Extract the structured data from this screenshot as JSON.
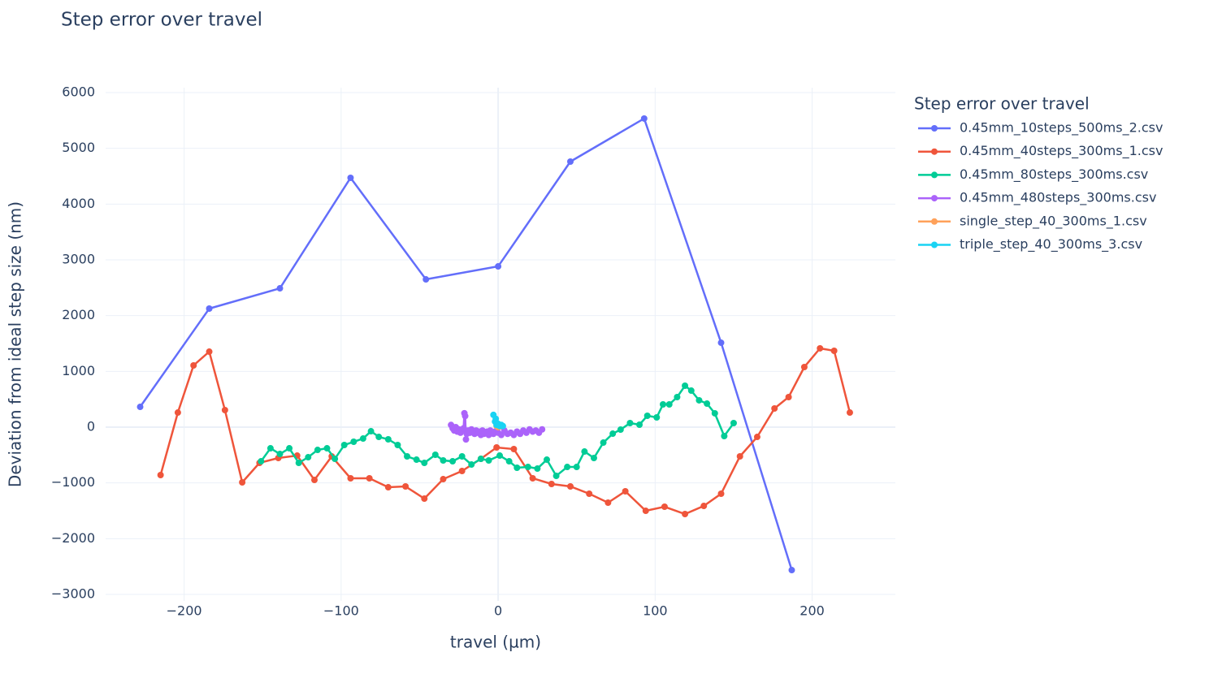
{
  "chart_data": {
    "type": "line",
    "title": "Step error over travel",
    "x_label": "travel (µm)",
    "y_label": "Deviation from ideal step size (nm)",
    "legend_title": "Step error over travel",
    "legend_position": "right",
    "grid": true,
    "xlim": [
      -250,
      253
    ],
    "ylim": [
      -3116,
      6087
    ],
    "xticks": [
      {
        "value": -200,
        "label": "−200"
      },
      {
        "value": -100,
        "label": "−100"
      },
      0,
      100,
      200
    ],
    "yticks": [
      {
        "value": -3000,
        "label": "−3000"
      },
      {
        "value": -2000,
        "label": "−2000"
      },
      {
        "value": -1000,
        "label": "−1000"
      },
      0,
      1000,
      2000,
      3000,
      4000,
      5000,
      6000
    ],
    "series": [
      {
        "name": "0.45mm_10steps_500ms_2.csv",
        "color": "#636efa",
        "x": [
          -228,
          -184,
          -139,
          -94,
          -46,
          0,
          46,
          93,
          142,
          187
        ],
        "values": [
          364,
          2126,
          2490,
          4471,
          2650,
          2883,
          4762,
          5534,
          1514,
          -2563
        ]
      },
      {
        "name": "0.45mm_40steps_300ms_1.csv",
        "color": "#ef553b",
        "x": [
          -215,
          -204,
          -194,
          -184,
          -174,
          -163,
          -152,
          -140,
          -128,
          -117,
          -106,
          -94,
          -82,
          -70,
          -59,
          -47,
          -35,
          -23,
          -11,
          -1,
          10,
          22,
          34,
          46,
          58,
          70,
          81,
          94,
          106,
          119,
          131,
          142,
          154,
          165,
          176,
          185,
          195,
          205,
          214,
          224
        ],
        "values": [
          -859,
          262,
          1107,
          1354,
          306,
          -990,
          -641,
          -553,
          -510,
          -947,
          -524,
          -917,
          -917,
          -1078,
          -1063,
          -1282,
          -932,
          -786,
          -568,
          -364,
          -393,
          -917,
          -1019,
          -1063,
          -1194,
          -1354,
          -1150,
          -1500,
          -1427,
          -1558,
          -1413,
          -1194,
          -524,
          -175,
          335,
          539,
          1078,
          1413,
          1369,
          262
        ]
      },
      {
        "name": "0.45mm_80steps_300ms.csv",
        "color": "#00cc96",
        "x": [
          -151,
          -145,
          -139,
          -133,
          -127,
          -121,
          -115,
          -109,
          -104,
          -98,
          -92,
          -86,
          -81,
          -76,
          -70,
          -64,
          -58,
          -52,
          -47,
          -40,
          -35,
          -29,
          -23,
          -17,
          -11,
          -6,
          1,
          7,
          12,
          19,
          25,
          31,
          37,
          44,
          50,
          55,
          61,
          67,
          73,
          78,
          84,
          90,
          95,
          101,
          105,
          109,
          114,
          119,
          123,
          128,
          133,
          138,
          144,
          150
        ],
        "values": [
          -612,
          -379,
          -481,
          -379,
          -641,
          -539,
          -408,
          -379,
          -568,
          -320,
          -262,
          -204,
          -73,
          -175,
          -218,
          -320,
          -524,
          -583,
          -641,
          -495,
          -597,
          -612,
          -524,
          -670,
          -568,
          -597,
          -510,
          -612,
          -728,
          -714,
          -743,
          -583,
          -874,
          -714,
          -714,
          -437,
          -553,
          -277,
          -117,
          -44,
          73,
          44,
          204,
          175,
          408,
          408,
          539,
          743,
          655,
          481,
          422,
          248,
          -160,
          73
        ]
      },
      {
        "name": "0.45mm_480steps_300ms.csv",
        "color": "#ab63fa",
        "x": [
          -30,
          -29,
          -28,
          -27,
          -26,
          -25,
          -24,
          -23,
          -22,
          -21.5,
          -21,
          -20.5,
          -20,
          -19,
          -18,
          -17,
          -16,
          -15,
          -14,
          -13,
          -12,
          -11,
          -10,
          -9,
          -8,
          -7,
          -6,
          -5,
          -4,
          -3,
          -2,
          0,
          2,
          4,
          6,
          8,
          10,
          12,
          14,
          16,
          18,
          20,
          22,
          24,
          26,
          28
        ],
        "values": [
          40,
          -20,
          -60,
          0,
          -80,
          -40,
          -100,
          -60,
          -20,
          250,
          200,
          -220,
          -120,
          -60,
          -100,
          -40,
          -80,
          -120,
          -60,
          -100,
          -80,
          -140,
          -60,
          -120,
          -100,
          -80,
          -140,
          -60,
          -100,
          -120,
          -80,
          -100,
          -140,
          -60,
          -120,
          -100,
          -140,
          -80,
          -120,
          -60,
          -100,
          -40,
          -80,
          -60,
          -100,
          -40
        ]
      },
      {
        "name": "single_step_40_300ms_1.csv",
        "color": "#ffa15a",
        "x": [
          -1,
          0,
          1
        ],
        "values": [
          20,
          0,
          10
        ]
      },
      {
        "name": "triple_step_40_300ms_3.csv",
        "color": "#19d3f3",
        "x": [
          -3,
          -2,
          -1.5,
          -1,
          0,
          1,
          2,
          3
        ],
        "values": [
          220,
          100,
          150,
          40,
          60,
          20,
          40,
          20
        ]
      }
    ]
  }
}
